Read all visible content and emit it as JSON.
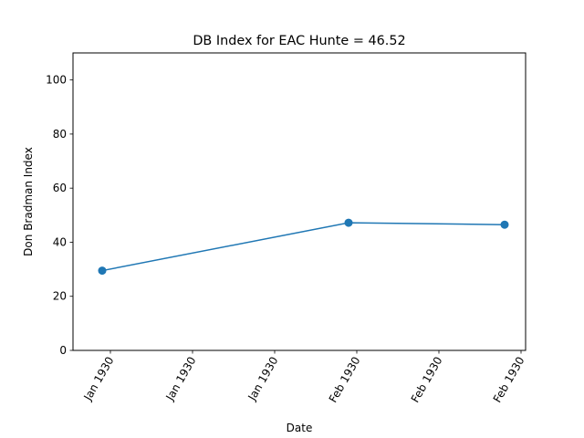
{
  "chart_data": {
    "type": "line",
    "title": "DB Index for EAC Hunte = 46.52",
    "xlabel": "Date",
    "ylabel": "Don Bradman Index",
    "ylim": [
      0,
      110
    ],
    "yticks": [
      0,
      20,
      40,
      60,
      80,
      100
    ],
    "xlim": [
      "1930-01-02",
      "1930-02-21"
    ],
    "xticks": [
      {
        "date": "1930-01-04",
        "label": "Jan 1930"
      },
      {
        "date": "1930-01-14",
        "label": "Jan 1930"
      },
      {
        "date": "1930-01-24",
        "label": "Jan 1930"
      },
      {
        "date": "1930-02-03",
        "label": "Feb 1930"
      },
      {
        "date": "1930-02-13",
        "label": "Feb 1930"
      },
      {
        "date": "1930-02-23",
        "label": "Feb 1930"
      }
    ],
    "grid": false,
    "series": [
      {
        "color": "#1f77b4",
        "points": [
          {
            "x": "1930-01-03",
            "y": 29.5
          },
          {
            "x": "1930-02-02",
            "y": 47.2
          },
          {
            "x": "1930-02-21",
            "y": 46.5
          }
        ]
      }
    ]
  }
}
